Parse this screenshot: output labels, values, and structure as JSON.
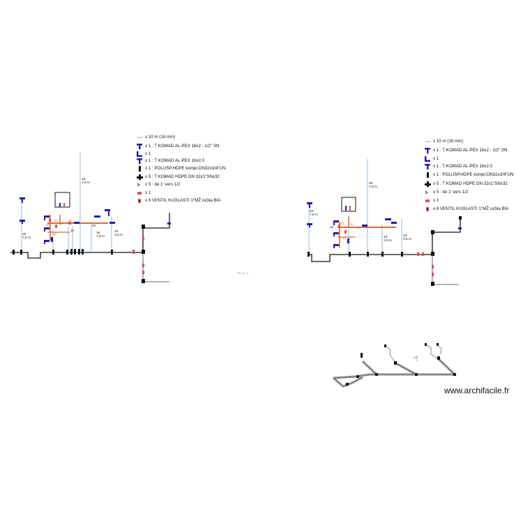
{
  "legend_left": {
    "items": [
      {
        "label": "x 10 m (16 mm)",
        "icon": "pex-pipe-line-icon"
      },
      {
        "label": "x 1 : T KOMAD AL-PEX 16x2 - 1/2\" SN",
        "icon": "tee-fitting-icon"
      },
      {
        "label": "x 1",
        "icon": "elbow-fitting-icon"
      },
      {
        "label": "x 1 : T KOMAD AL-PEX 16x2.0",
        "icon": "tee-fitting-icon"
      },
      {
        "label": "x 1 : POLUSP.HDPE kompr.DN32x3/4\"UN",
        "icon": "coupling-icon"
      },
      {
        "label": "x 5 : T KOMAD HDPE DN 32x1\"SNx32",
        "icon": "hdpe-tee-icon"
      },
      {
        "label": "x 5 : de 1' vers 1/2",
        "icon": "reducer-icon"
      },
      {
        "label": "x 1",
        "icon": "valve-small-icon"
      },
      {
        "label": "x 6 VENTIL KUGLASTI 1\"MŽ ručka BIA",
        "icon": "ball-valve-icon"
      }
    ]
  },
  "legend_right": {
    "items": [
      {
        "label": "x 10 m (16 mm)",
        "icon": "pex-pipe-line-icon"
      },
      {
        "label": "x 1 : T KOMAD AL-PEX 16x2 - 1/2\" SN",
        "icon": "tee-fitting-icon"
      },
      {
        "label": "x 1",
        "icon": "elbow-fitting-icon"
      },
      {
        "label": "x 1 : T KOMAD AL-PEX 16x2.0",
        "icon": "tee-fitting-icon"
      },
      {
        "label": "x 1 : POLUSP.HDPE kompr.DN32x3/4\"UN",
        "icon": "coupling-icon"
      },
      {
        "label": "x 5 : T KOMAD HDPE DN 32x1\"SNx32",
        "icon": "hdpe-tee-icon"
      },
      {
        "label": "x 5 : de 1' vers 1/2",
        "icon": "reducer-icon"
      },
      {
        "label": "x 1",
        "icon": "valve-small-icon"
      },
      {
        "label": "x 6 VENTIL KUGLASTI 1\"MŽ ručka BIA",
        "icon": "ball-valve-icon"
      }
    ]
  },
  "left_plan": {
    "labels": [
      {
        "text": "16",
        "name": "dim-16-top"
      },
      {
        "text": "7,5 m",
        "name": "dim-7-5m-top"
      },
      {
        "text": "25",
        "name": "dim-25"
      },
      {
        "text": "7,5 m",
        "name": "dim-7-5m-left"
      },
      {
        "text": "16",
        "name": "dim-16-mid"
      },
      {
        "text": "7,5 m",
        "name": "dim-7-5m-mid"
      },
      {
        "text": "16",
        "name": "dim-16-right"
      },
      {
        "text": "3,5 m",
        "name": "dim-3-5m"
      },
      {
        "text": "25",
        "name": "seg-25-a"
      },
      {
        "text": "20",
        "name": "seg-20-a"
      },
      {
        "text": "25",
        "name": "seg-25-b"
      },
      {
        "text": "20",
        "name": "seg-20-b"
      },
      {
        "text": "16",
        "name": "seg-16"
      },
      {
        "text": "20",
        "name": "seg-20-c"
      },
      {
        "text": "25",
        "name": "seg-25-c"
      }
    ],
    "small_note": "PEX 16 · m"
  },
  "right_plan": {
    "labels": [
      {
        "text": "20",
        "name": "dim-20-top"
      },
      {
        "text": "7,5 m",
        "name": "dim-7-5m-top"
      },
      {
        "text": "20",
        "name": "dim-20-left"
      },
      {
        "text": "7,5 m",
        "name": "dim-7-5m-left"
      },
      {
        "text": "16",
        "name": "dim-16-mid"
      },
      {
        "text": "3,5 m",
        "name": "dim-3-5m-mid"
      },
      {
        "text": "16",
        "name": "dim-16-right"
      },
      {
        "text": "3,5 m",
        "name": "dim-3-5m-right"
      },
      {
        "text": "16",
        "name": "seg-16-a"
      },
      {
        "text": "20",
        "name": "seg-20-a"
      },
      {
        "text": "20",
        "name": "seg-20-b"
      },
      {
        "text": "16",
        "name": "seg-16-b"
      },
      {
        "text": "20",
        "name": "seg-20-c"
      }
    ]
  },
  "watermark": "www.archifacile.fr",
  "colors": {
    "pex": "#8fbde0",
    "pipe": "#111111",
    "grey_pipe": "#888888",
    "orange": "#e06a2c",
    "blue_fitting": "#1f1fb0",
    "valve_red": "#e05050"
  }
}
